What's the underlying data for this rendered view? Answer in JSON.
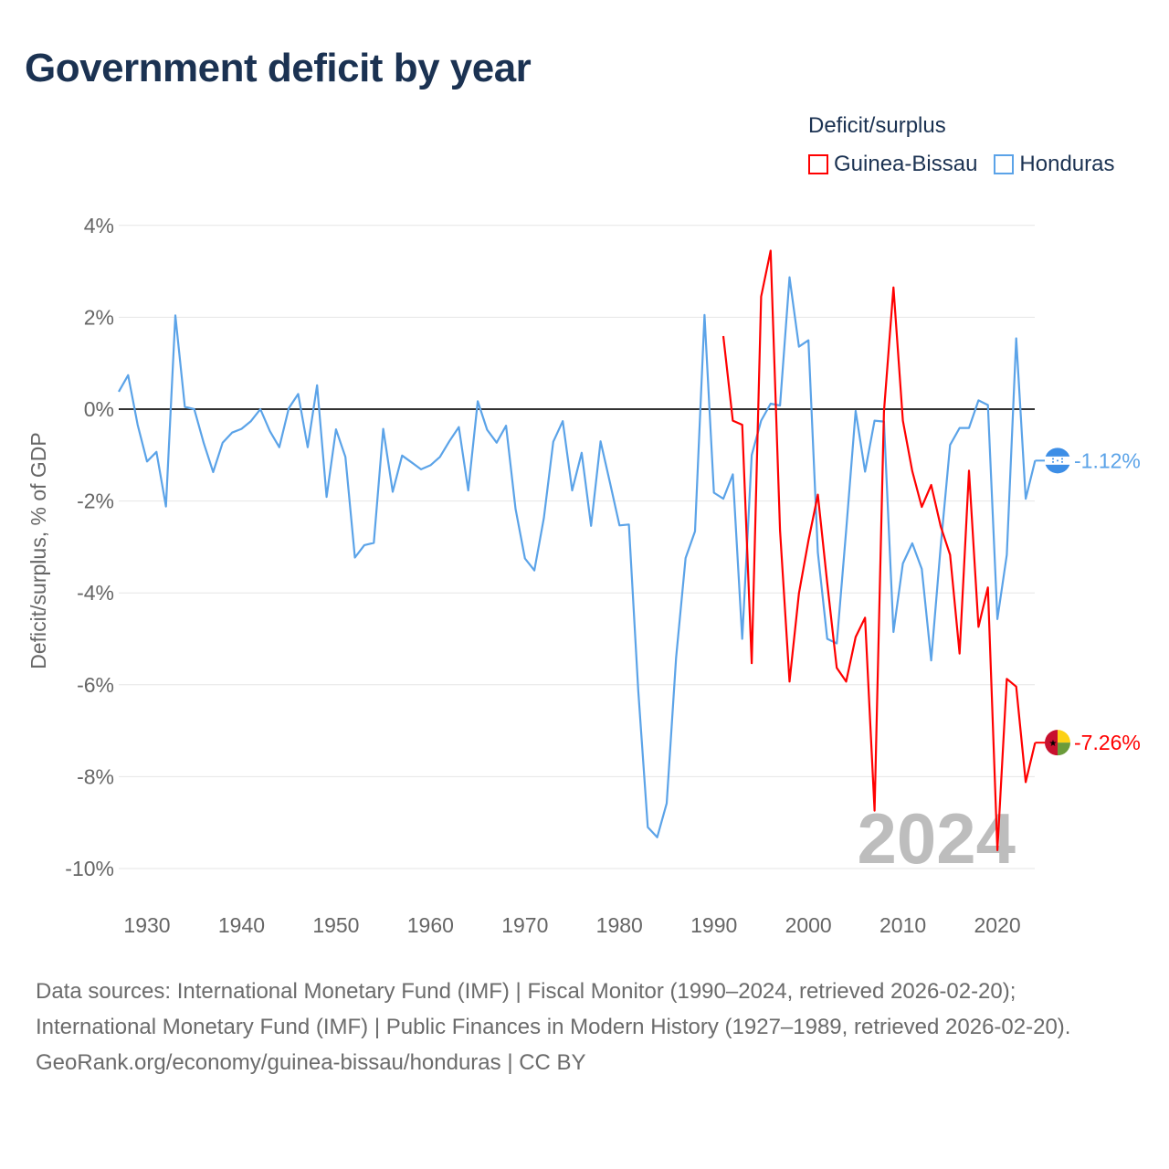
{
  "title": "Government deficit by year",
  "legend": {
    "title": "Deficit/surplus",
    "items": [
      {
        "label": "Guinea-Bissau",
        "color": "#ff0000"
      },
      {
        "label": "Honduras",
        "color": "#5ba3e8"
      }
    ]
  },
  "chart_data": {
    "type": "line",
    "title": "Government deficit by year",
    "ylabel": "Deficit/surplus, % of GDP",
    "xlabel": "",
    "xlim": [
      1927,
      2024
    ],
    "ylim": [
      -10.8,
      4
    ],
    "x_ticks": [
      1930,
      1940,
      1950,
      1960,
      1970,
      1980,
      1990,
      2000,
      2010,
      2020
    ],
    "y_ticks": [
      4,
      2,
      0,
      -2,
      -4,
      -6,
      -8,
      -10
    ],
    "y_tick_labels": [
      "4%",
      "2%",
      "0%",
      "-2%",
      "-4%",
      "-6%",
      "-8%",
      "-10%"
    ],
    "grid": true,
    "legend_position": "top-right",
    "year_watermark": "2024",
    "series": [
      {
        "name": "Honduras",
        "color": "#5ba3e8",
        "end_label": "-1.12%",
        "flag": "honduras-flag",
        "start_year": 1927,
        "values": [
          0.38,
          0.74,
          -0.34,
          -1.14,
          -0.93,
          -2.12,
          2.04,
          0.05,
          0.0,
          -0.74,
          -1.37,
          -0.73,
          -0.51,
          -0.43,
          -0.26,
          0.0,
          -0.48,
          -0.83,
          0.02,
          0.33,
          -0.83,
          0.52,
          -1.91,
          -0.44,
          -1.04,
          -3.23,
          -2.96,
          -2.91,
          -0.43,
          -1.8,
          -1.01,
          -1.16,
          -1.31,
          -1.22,
          -1.04,
          -0.7,
          -0.39,
          -1.77,
          0.17,
          -0.45,
          -0.73,
          -0.36,
          -2.17,
          -3.25,
          -3.51,
          -2.37,
          -0.71,
          -0.26,
          -1.77,
          -0.95,
          -2.54,
          -0.7,
          -1.6,
          -2.53,
          -2.51,
          -6.14,
          -9.1,
          -9.32,
          -8.58,
          -5.41,
          -3.24,
          -2.66,
          2.05,
          -1.82,
          -1.95,
          -1.42,
          -5.0,
          -1.0,
          -0.25,
          0.12,
          0.08,
          2.87,
          1.36,
          1.5,
          -3.12,
          -5.0,
          -5.1,
          -2.64,
          -0.04,
          -1.36,
          -0.25,
          -0.27,
          -4.85,
          -3.36,
          -2.92,
          -3.48,
          -5.47,
          -2.99,
          -0.78,
          -0.41,
          -0.41,
          0.19,
          0.09,
          -4.57,
          -3.17,
          1.54,
          -1.95,
          -1.12
        ]
      },
      {
        "name": "Guinea-Bissau",
        "color": "#ff0000",
        "end_label": "-7.26%",
        "flag": "guinea-bissau-flag",
        "start_year": 1991,
        "values": [
          1.59,
          -0.25,
          -0.34,
          -5.53,
          2.45,
          3.45,
          -2.64,
          -5.93,
          -4.01,
          -2.86,
          -1.86,
          -3.79,
          -5.63,
          -5.93,
          -4.96,
          -4.54,
          -8.74,
          -0.05,
          2.65,
          -0.25,
          -1.35,
          -2.13,
          -1.65,
          -2.55,
          -3.17,
          -5.32,
          -1.34,
          -4.74,
          -3.88,
          -9.6,
          -5.87,
          -6.04,
          -8.12,
          -7.26
        ]
      }
    ]
  },
  "footer": {
    "sources": "Data sources: International Monetary Fund (IMF) | Fiscal Monitor (1990–2024, retrieved 2026-02-20); International Monetary Fund (IMF) | Public Finances in Modern History (1927–1989, retrieved 2026-02-20).",
    "link": "GeoRank.org/economy/guinea-bissau/honduras | CC BY"
  }
}
